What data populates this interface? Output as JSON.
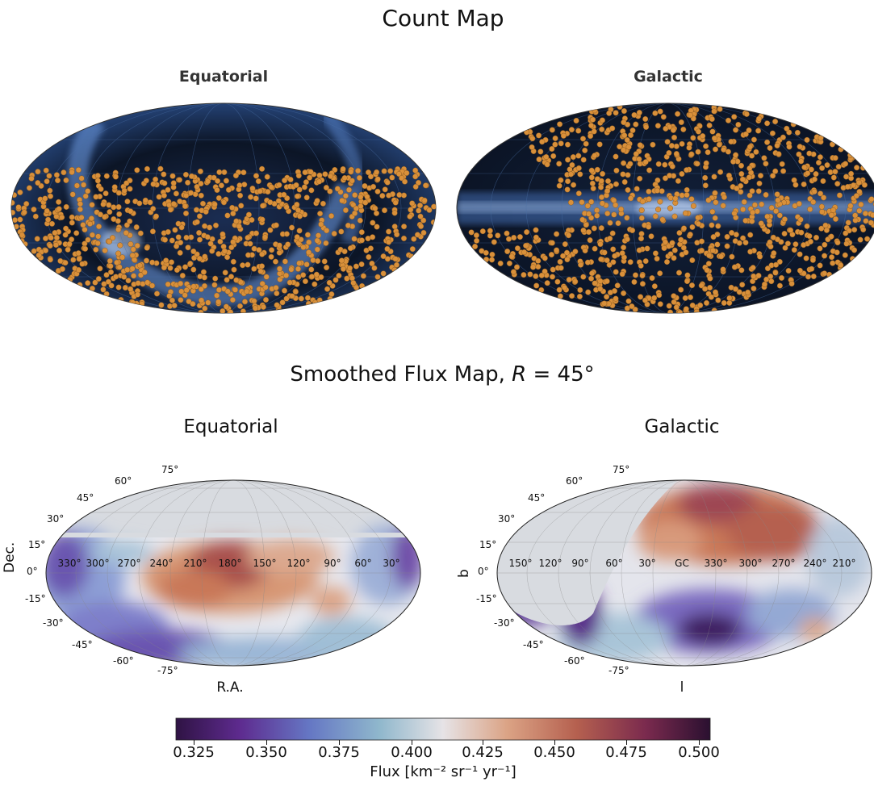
{
  "titles": {
    "count_map": "Count Map",
    "count_equatorial": "Equatorial",
    "count_galactic": "Galactic",
    "flux_map": "Smoothed Flux Map, R = 45°",
    "flux_equatorial": "Equatorial",
    "flux_galactic": "Galactic"
  },
  "chart_data": [
    {
      "type": "scatter",
      "panel": "Count Map - Equatorial",
      "projection": "mollweide",
      "background": "all-sky dark map (blue)",
      "marker_color": "#d9903a",
      "points_description": "orange event markers concentrated in the southern sky (dec below ~+30°)"
    },
    {
      "type": "scatter",
      "panel": "Count Map - Galactic",
      "projection": "mollweide",
      "background": "all-sky dark map (blue) with galactic plane band",
      "marker_color": "#d9903a"
    },
    {
      "type": "heatmap",
      "panel": "Smoothed Flux Map - Equatorial",
      "projection": "mollweide",
      "xlabel": "R.A.",
      "ylabel": "Dec.",
      "x_ticks": [
        "330°",
        "300°",
        "270°",
        "240°",
        "210°",
        "180°",
        "150°",
        "120°",
        "90°",
        "60°",
        "30°"
      ],
      "y_ticks": [
        "75°",
        "60°",
        "45°",
        "30°",
        "15°",
        "0°",
        "-15°",
        "-30°",
        "-45°",
        "-60°",
        "-75°"
      ],
      "masked_region": "dec > ~+24° (grey, no coverage)"
    },
    {
      "type": "heatmap",
      "panel": "Smoothed Flux Map - Galactic",
      "projection": "mollweide",
      "xlabel": "l",
      "ylabel": "b",
      "x_ticks": [
        "150°",
        "120°",
        "90°",
        "60°",
        "30°",
        "GC",
        "330°",
        "300°",
        "270°",
        "240°",
        "210°"
      ],
      "y_ticks": [
        "75°",
        "60°",
        "45°",
        "30°",
        "15°",
        "0°",
        "-15°",
        "-30°",
        "-45°",
        "-60°",
        "-75°"
      ],
      "masked_region": "northern-equatorial sky mapped to galactic (grey)"
    },
    {
      "type": "colorbar",
      "label": "Flux [km⁻² sr⁻¹ yr⁻¹]",
      "range": [
        0.315,
        0.502
      ],
      "ticks": [
        "0.325",
        "0.350",
        "0.375",
        "0.400",
        "0.425",
        "0.450",
        "0.475",
        "0.500"
      ],
      "colormap": "twilight_shifted (purple → white → red → dark)"
    }
  ]
}
